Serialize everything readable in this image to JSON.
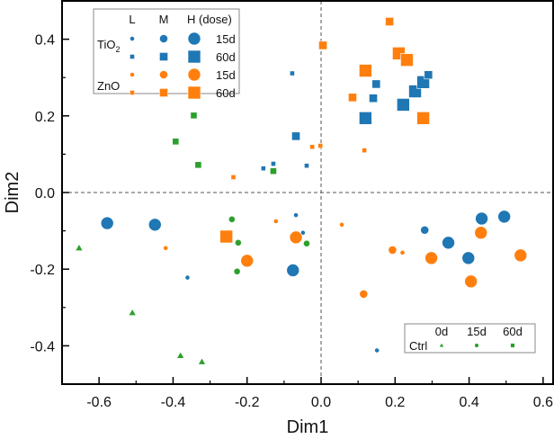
{
  "chart_data": {
    "type": "scatter",
    "title": "",
    "xlabel": "Dim1",
    "ylabel": "Dim2",
    "xlim": [
      -0.7,
      0.627
    ],
    "ylim": [
      -0.5,
      0.5
    ],
    "xticks": [
      "-0.6",
      "-0.4",
      "-0.2",
      "0.0",
      "0.2",
      "0.4",
      "0.6"
    ],
    "xtick_values": [
      -0.6,
      -0.4,
      -0.2,
      0.0,
      0.2,
      0.4,
      0.6
    ],
    "yticks": [
      "-0.4",
      "-0.2",
      "0.0",
      "0.2",
      "0.4"
    ],
    "ytick_values": [
      -0.4,
      -0.2,
      0.0,
      0.2,
      0.4
    ],
    "grid": false,
    "reference_lines": {
      "x": 0.0,
      "y": 0.0,
      "style": "dashed"
    },
    "colors": {
      "TiO2": "#1f77b4",
      "ZnO": "#ff7f0e",
      "Ctrl": "#2ca02c"
    },
    "legend_main": {
      "placement": "top-left",
      "column_headers": [
        "L",
        "M",
        "H (dose)"
      ],
      "groups": [
        {
          "label": "TiO",
          "subscript": "2",
          "material": "TiO2",
          "rows": [
            {
              "time": "15d",
              "shape": "circle"
            },
            {
              "time": "60d",
              "shape": "square"
            }
          ]
        },
        {
          "label": "ZnO",
          "subscript": "",
          "material": "ZnO",
          "rows": [
            {
              "time": "15d",
              "shape": "circle"
            },
            {
              "time": "60d",
              "shape": "square"
            }
          ]
        }
      ]
    },
    "legend_ctrl": {
      "placement": "bottom-right",
      "label": "Ctrl",
      "column_headers": [
        "0d",
        "15d",
        "60d"
      ],
      "shapes": [
        "triangle",
        "circle",
        "square"
      ]
    },
    "series": [
      {
        "name": "TiO2 15d",
        "material": "TiO2",
        "shape": "circle",
        "points": [
          {
            "x": -0.578,
            "y": -0.08,
            "dose": "H"
          },
          {
            "x": -0.449,
            "y": -0.084,
            "dose": "H"
          },
          {
            "x": -0.361,
            "y": -0.222,
            "dose": "L"
          },
          {
            "x": -0.068,
            "y": -0.059,
            "dose": "L"
          },
          {
            "x": -0.049,
            "y": -0.105,
            "dose": "L"
          },
          {
            "x": -0.076,
            "y": -0.203,
            "dose": "H"
          },
          {
            "x": 0.151,
            "y": -0.412,
            "dose": "L"
          },
          {
            "x": 0.28,
            "y": -0.098,
            "dose": "M"
          },
          {
            "x": 0.344,
            "y": -0.131,
            "dose": "H"
          },
          {
            "x": 0.398,
            "y": -0.171,
            "dose": "H"
          },
          {
            "x": 0.434,
            "y": -0.068,
            "dose": "H"
          },
          {
            "x": 0.495,
            "y": -0.063,
            "dose": "H"
          }
        ]
      },
      {
        "name": "TiO2 60d",
        "material": "TiO2",
        "shape": "square",
        "points": [
          {
            "x": -0.156,
            "y": 0.063,
            "dose": "L"
          },
          {
            "x": -0.129,
            "y": 0.075,
            "dose": "L"
          },
          {
            "x": -0.078,
            "y": 0.311,
            "dose": "L"
          },
          {
            "x": -0.068,
            "y": 0.147,
            "dose": "M"
          },
          {
            "x": -0.039,
            "y": 0.07,
            "dose": "L"
          },
          {
            "x": 0.12,
            "y": 0.194,
            "dose": "H"
          },
          {
            "x": 0.141,
            "y": 0.246,
            "dose": "M"
          },
          {
            "x": 0.149,
            "y": 0.283,
            "dose": "M"
          },
          {
            "x": 0.222,
            "y": 0.229,
            "dose": "H"
          },
          {
            "x": 0.254,
            "y": 0.264,
            "dose": "H"
          },
          {
            "x": 0.276,
            "y": 0.288,
            "dose": "H"
          },
          {
            "x": 0.29,
            "y": 0.307,
            "dose": "M"
          }
        ]
      },
      {
        "name": "ZnO 15d",
        "material": "ZnO",
        "shape": "circle",
        "points": [
          {
            "x": -0.42,
            "y": -0.145,
            "dose": "L"
          },
          {
            "x": -0.2,
            "y": -0.178,
            "dose": "H"
          },
          {
            "x": -0.122,
            "y": -0.075,
            "dose": "L"
          },
          {
            "x": -0.068,
            "y": -0.117,
            "dose": "H"
          },
          {
            "x": 0.056,
            "y": -0.084,
            "dose": "L"
          },
          {
            "x": 0.115,
            "y": -0.265,
            "dose": "M"
          },
          {
            "x": 0.193,
            "y": -0.15,
            "dose": "M"
          },
          {
            "x": 0.22,
            "y": -0.157,
            "dose": "L"
          },
          {
            "x": 0.298,
            "y": -0.171,
            "dose": "H"
          },
          {
            "x": 0.405,
            "y": -0.232,
            "dose": "H"
          },
          {
            "x": 0.432,
            "y": -0.105,
            "dose": "H"
          },
          {
            "x": 0.539,
            "y": -0.164,
            "dose": "H"
          }
        ]
      },
      {
        "name": "ZnO 60d",
        "material": "ZnO",
        "shape": "square",
        "points": [
          {
            "x": -0.256,
            "y": -0.115,
            "dose": "H"
          },
          {
            "x": -0.237,
            "y": 0.04,
            "dose": "L"
          },
          {
            "x": -0.024,
            "y": 0.119,
            "dose": "L"
          },
          {
            "x": -0.002,
            "y": 0.122,
            "dose": "L"
          },
          {
            "x": 0.005,
            "y": 0.384,
            "dose": "M"
          },
          {
            "x": 0.085,
            "y": 0.248,
            "dose": "M"
          },
          {
            "x": 0.117,
            "y": 0.11,
            "dose": "L"
          },
          {
            "x": 0.12,
            "y": 0.318,
            "dose": "H"
          },
          {
            "x": 0.185,
            "y": 0.446,
            "dose": "M"
          },
          {
            "x": 0.21,
            "y": 0.363,
            "dose": "H"
          },
          {
            "x": 0.232,
            "y": 0.346,
            "dose": "H"
          },
          {
            "x": 0.276,
            "y": 0.194,
            "dose": "H"
          }
        ]
      },
      {
        "name": "Ctrl 0d",
        "material": "Ctrl",
        "shape": "triangle",
        "points": [
          {
            "x": -0.654,
            "y": -0.145
          },
          {
            "x": -0.51,
            "y": -0.314
          },
          {
            "x": -0.38,
            "y": -0.426
          },
          {
            "x": -0.322,
            "y": -0.442
          }
        ]
      },
      {
        "name": "Ctrl 15d",
        "material": "Ctrl",
        "shape": "circle",
        "points": [
          {
            "x": -0.241,
            "y": -0.07
          },
          {
            "x": -0.224,
            "y": -0.131
          },
          {
            "x": -0.227,
            "y": -0.206
          },
          {
            "x": -0.039,
            "y": -0.133
          }
        ]
      },
      {
        "name": "Ctrl 60d",
        "material": "Ctrl",
        "shape": "square",
        "points": [
          {
            "x": -0.344,
            "y": 0.201
          },
          {
            "x": -0.393,
            "y": 0.133
          },
          {
            "x": -0.332,
            "y": 0.072
          },
          {
            "x": -0.129,
            "y": 0.056
          }
        ]
      }
    ]
  }
}
